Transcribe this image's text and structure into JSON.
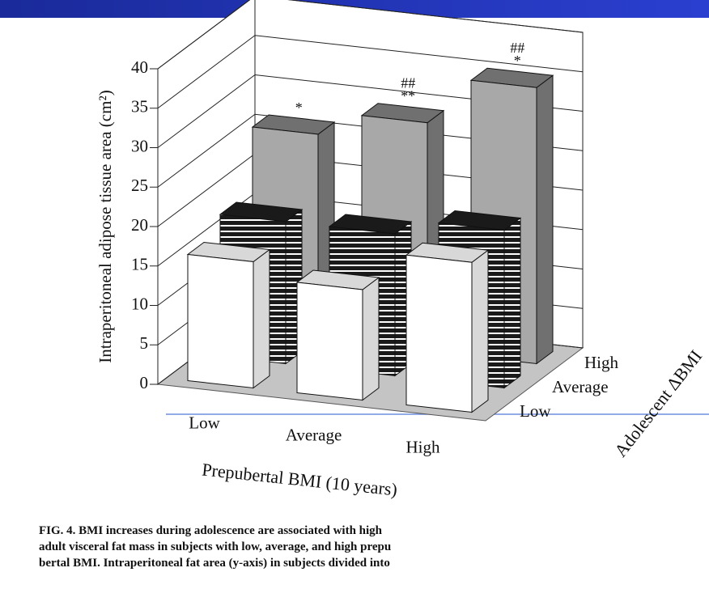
{
  "chart_data": {
    "type": "bar3d",
    "ylabel": "Intraperitoneal adipose tissue area (cm²)",
    "xlabel": "Prepubertal BMI (10 years)",
    "zlabel": "Adolescent ΔBMI",
    "categories": [
      "Low",
      "Average",
      "High"
    ],
    "series": [
      {
        "name": "Low",
        "color": "#ffffff",
        "values": [
          16,
          14,
          19
        ]
      },
      {
        "name": "Average",
        "color": "#1a1a1a",
        "pattern": "horizontal-stripes",
        "values": [
          18,
          18,
          20
        ]
      },
      {
        "name": "High",
        "color": "#a8a8a8",
        "values": [
          26,
          29,
          35
        ],
        "annotations": [
          [
            "*"
          ],
          [
            "##",
            "**"
          ],
          [
            "##",
            "*"
          ]
        ]
      }
    ],
    "ylim": [
      0,
      40
    ],
    "yticks": [
      0,
      5,
      10,
      15,
      20,
      25,
      30,
      35,
      40
    ],
    "grid": true,
    "caption": [
      "FIG. 4. BMI increases during adolescence are associated with high",
      "adult visceral fat mass in subjects with low, average, and high prepu",
      "bertal BMI. Intraperitoneal fat area (y-axis) in subjects divided into"
    ]
  }
}
